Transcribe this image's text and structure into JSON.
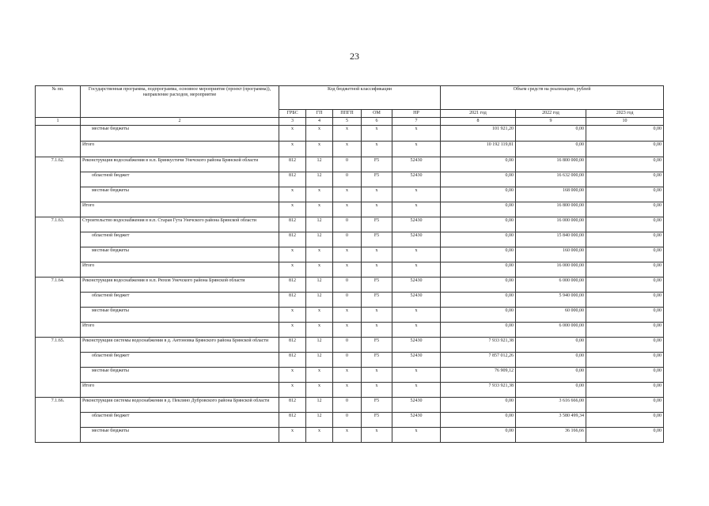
{
  "page_number": "23",
  "header": {
    "col_num": "№ пп.",
    "col_name": "Государственная программа, подпрограмма, основное мероприятие (проект (программа)), направление расходов, мероприятие",
    "col_code": "Код бюджетной классификации",
    "col_amount": "Объем средств на реализацию, рублей",
    "sub": [
      "ГРБС",
      "ГП",
      "ППГП",
      "ОМ",
      "НР",
      "2021 год",
      "2022 год",
      "2023 год"
    ],
    "numbers": [
      "1",
      "2",
      "3",
      "4",
      "5",
      "6",
      "7",
      "8",
      "9",
      "10"
    ]
  },
  "rows": [
    {
      "num": "",
      "name": "местные бюджеты",
      "indent": true,
      "codes": [
        "х",
        "х",
        "х",
        "х",
        "х"
      ],
      "values": [
        "101 921,20",
        "0,00",
        "0,00"
      ]
    },
    {
      "num": "",
      "name": "Итого",
      "indent": false,
      "codes": [
        "х",
        "х",
        "х",
        "х",
        "х"
      ],
      "values": [
        "10 192 119,81",
        "0,00",
        "0,00"
      ]
    },
    {
      "num": "7.1.62.",
      "name": "Реконструкция водоснабжения в н.п. Брянкустичи Унечского района Брянской области",
      "indent": false,
      "codes": [
        "812",
        "12",
        "0",
        "F5",
        "52430"
      ],
      "values": [
        "0,00",
        "16 800 000,00",
        "0,00"
      ]
    },
    {
      "num": "",
      "name": "областной бюджет",
      "indent": true,
      "codes": [
        "812",
        "12",
        "0",
        "F5",
        "52430"
      ],
      "values": [
        "0,00",
        "16 632 000,00",
        "0,00"
      ]
    },
    {
      "num": "",
      "name": "местные бюджеты",
      "indent": true,
      "codes": [
        "х",
        "х",
        "х",
        "х",
        "х"
      ],
      "values": [
        "0,00",
        "168 000,00",
        "0,00"
      ]
    },
    {
      "num": "",
      "name": "Итого",
      "indent": false,
      "codes": [
        "х",
        "х",
        "х",
        "х",
        "х"
      ],
      "values": [
        "0,00",
        "16 800 000,00",
        "0,00"
      ]
    },
    {
      "num": "7.1.63.",
      "name": "Строительство водоснабжения в н.п. Старая Гута Унечского района Брянской области",
      "indent": false,
      "codes": [
        "812",
        "12",
        "0",
        "F5",
        "52430"
      ],
      "values": [
        "0,00",
        "16 000 000,00",
        "0,00"
      ]
    },
    {
      "num": "",
      "name": "областной бюджет",
      "indent": true,
      "codes": [
        "812",
        "12",
        "0",
        "F5",
        "52430"
      ],
      "values": [
        "0,00",
        "15 840 000,00",
        "0,00"
      ]
    },
    {
      "num": "",
      "name": "местные бюджеты",
      "indent": true,
      "codes": [
        "х",
        "х",
        "х",
        "х",
        "х"
      ],
      "values": [
        "0,00",
        "160 000,00",
        "0,00"
      ]
    },
    {
      "num": "",
      "name": "Итого",
      "indent": false,
      "codes": [
        "х",
        "х",
        "х",
        "х",
        "х"
      ],
      "values": [
        "0,00",
        "16 000 000,00",
        "0,00"
      ]
    },
    {
      "num": "7.1.64.",
      "name": "Реконструкция водоснабжения в н.п. Рюхов Унечского района Брянской области",
      "indent": false,
      "codes": [
        "812",
        "12",
        "0",
        "F5",
        "52430"
      ],
      "values": [
        "0,00",
        "6 000 000,00",
        "0,00"
      ]
    },
    {
      "num": "",
      "name": "областной бюджет",
      "indent": true,
      "codes": [
        "812",
        "12",
        "0",
        "F5",
        "52430"
      ],
      "values": [
        "0,00",
        "5 940 000,00",
        "0,00"
      ]
    },
    {
      "num": "",
      "name": "местные бюджеты",
      "indent": true,
      "codes": [
        "х",
        "х",
        "х",
        "х",
        "х"
      ],
      "values": [
        "0,00",
        "60 000,00",
        "0,00"
      ]
    },
    {
      "num": "",
      "name": "Итого",
      "indent": false,
      "codes": [
        "х",
        "х",
        "х",
        "х",
        "х"
      ],
      "values": [
        "0,00",
        "6 000 000,00",
        "0,00"
      ]
    },
    {
      "num": "7.1.65.",
      "name": "Реконструкция системы водоснабжения в д. Антоновка Брянского района Брянской области",
      "indent": false,
      "codes": [
        "812",
        "12",
        "0",
        "F5",
        "52430"
      ],
      "values": [
        "7 933 921,38",
        "0,00",
        "0,00"
      ]
    },
    {
      "num": "",
      "name": "областной бюджет",
      "indent": true,
      "codes": [
        "812",
        "12",
        "0",
        "F5",
        "52430"
      ],
      "values": [
        "7 857 012,26",
        "0,00",
        "0,00"
      ]
    },
    {
      "num": "",
      "name": "местные бюджеты",
      "indent": true,
      "codes": [
        "х",
        "х",
        "х",
        "х",
        "х"
      ],
      "values": [
        "76 909,12",
        "0,00",
        "0,00"
      ]
    },
    {
      "num": "",
      "name": "Итого",
      "indent": false,
      "codes": [
        "х",
        "х",
        "х",
        "х",
        "х"
      ],
      "values": [
        "7 933 921,38",
        "0,00",
        "0,00"
      ]
    },
    {
      "num": "7.1.66.",
      "name": "Реконструкция системы водоснабжения в д. Пеклино Дубровского района Брянской области",
      "indent": false,
      "codes": [
        "812",
        "12",
        "0",
        "F5",
        "52430"
      ],
      "values": [
        "0,00",
        "3 616 666,00",
        "0,00"
      ]
    },
    {
      "num": "",
      "name": "областной бюджет",
      "indent": true,
      "codes": [
        "812",
        "12",
        "0",
        "F5",
        "52430"
      ],
      "values": [
        "0,00",
        "3 580 499,34",
        "0,00"
      ]
    },
    {
      "num": "",
      "name": "местные бюджеты",
      "indent": true,
      "codes": [
        "х",
        "х",
        "х",
        "х",
        "х"
      ],
      "values": [
        "0,00",
        "36 166,66",
        "0,00"
      ]
    }
  ]
}
